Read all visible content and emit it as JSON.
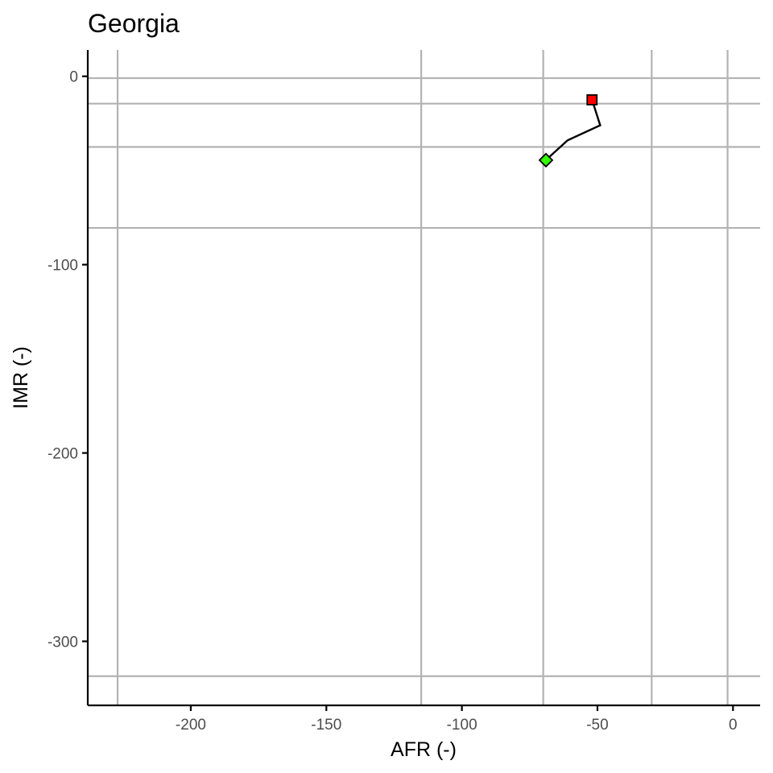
{
  "chart_data": {
    "type": "line",
    "title": "Georgia",
    "xlabel": "AFR (-)",
    "ylabel": "IMR (-)",
    "xlim": [
      -238,
      10
    ],
    "ylim": [
      -334,
      14
    ],
    "xticks": [
      -200,
      -150,
      -100,
      -50,
      0
    ],
    "yticks": [
      0,
      -100,
      -200,
      -300
    ],
    "grid": false,
    "reference_lines": {
      "vertical": [
        -227,
        -115,
        -70,
        -30,
        -2
      ],
      "horizontal": [
        -1,
        -14.5,
        -37.5,
        -80.5,
        -318.5
      ]
    },
    "series": [
      {
        "points": [
          {
            "x": -52,
            "y": -12.5
          },
          {
            "x": -49,
            "y": -26
          },
          {
            "x": -61,
            "y": -34
          },
          {
            "x": -69,
            "y": -44.5
          }
        ],
        "color": "#000000"
      }
    ],
    "markers": [
      {
        "kind": "start",
        "shape": "square",
        "x": -52,
        "y": -12.5,
        "color": "#ff0000"
      },
      {
        "kind": "end",
        "shape": "diamond",
        "x": -69,
        "y": -44.5,
        "color": "#33ff00"
      }
    ]
  }
}
